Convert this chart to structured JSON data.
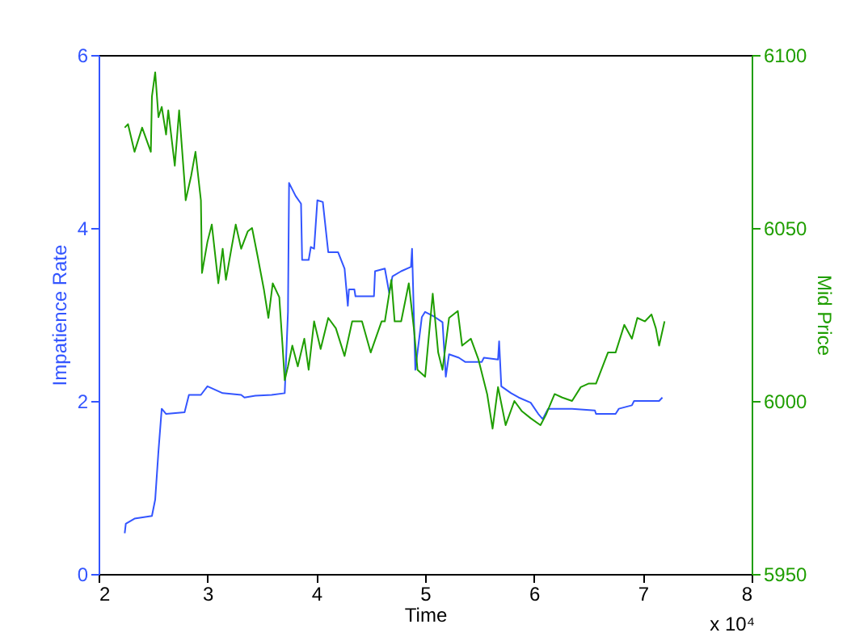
{
  "chart_data": {
    "type": "line",
    "xlabel": "Time",
    "ylabel": "Impatience Rate",
    "y2label": "Mid Price",
    "xlim": [
      2,
      8
    ],
    "xticks": [
      2,
      3,
      4,
      5,
      6,
      7,
      8
    ],
    "ylim": [
      0,
      6
    ],
    "yticks": [
      0,
      2,
      4,
      6
    ],
    "y2lim": [
      5950,
      6100
    ],
    "y2ticks": [
      5950,
      6000,
      6050,
      6100
    ],
    "grid": false,
    "marker": "none",
    "line_style": "solid",
    "annotations": [
      "x 10⁴"
    ],
    "series": [
      {
        "color": "#3355ff",
        "axis": "y",
        "x": [
          2.24,
          2.25,
          2.33,
          2.49,
          2.52,
          2.55,
          2.58,
          2.62,
          2.79,
          2.83,
          2.94,
          3.0,
          3.14,
          3.31,
          3.34,
          3.44,
          3.59,
          3.71,
          3.74,
          3.75,
          3.81,
          3.86,
          3.87,
          3.93,
          3.95,
          3.98,
          4.01,
          4.06,
          4.11,
          4.2,
          4.26,
          4.29,
          4.3,
          4.35,
          4.36,
          4.53,
          4.54,
          4.63,
          4.67,
          4.7,
          4.78,
          4.87,
          4.88,
          4.91,
          4.97,
          5.0,
          5.09,
          5.16,
          5.19,
          5.22,
          5.31,
          5.37,
          5.52,
          5.54,
          5.67,
          5.68,
          5.7,
          5.79,
          5.86,
          5.97,
          6.04,
          6.08,
          6.13,
          6.35,
          6.56,
          6.57,
          6.75,
          6.78,
          6.9,
          6.92,
          7.15,
          7.18
        ],
        "values": [
          0.47,
          0.58,
          0.64,
          0.67,
          0.86,
          1.42,
          1.91,
          1.85,
          1.87,
          2.07,
          2.07,
          2.17,
          2.09,
          2.07,
          2.04,
          2.06,
          2.07,
          2.09,
          3.03,
          4.52,
          4.37,
          4.28,
          3.63,
          3.63,
          3.78,
          3.76,
          4.32,
          4.3,
          3.72,
          3.72,
          3.53,
          3.1,
          3.29,
          3.29,
          3.21,
          3.21,
          3.5,
          3.53,
          3.25,
          3.44,
          3.5,
          3.55,
          3.76,
          2.36,
          2.97,
          3.03,
          2.97,
          2.91,
          2.28,
          2.54,
          2.5,
          2.45,
          2.45,
          2.5,
          2.48,
          2.69,
          2.17,
          2.09,
          2.04,
          1.98,
          1.85,
          1.79,
          1.91,
          1.91,
          1.89,
          1.85,
          1.85,
          1.91,
          1.95,
          2.0,
          2.0,
          2.04
        ]
      },
      {
        "color": "#1f9e00",
        "axis": "y2",
        "x": [
          2.24,
          2.27,
          2.33,
          2.4,
          2.48,
          2.49,
          2.52,
          2.55,
          2.58,
          2.62,
          2.64,
          2.7,
          2.74,
          2.79,
          2.8,
          2.85,
          2.89,
          2.94,
          2.95,
          3.0,
          3.04,
          3.1,
          3.14,
          3.17,
          3.22,
          3.26,
          3.31,
          3.37,
          3.41,
          3.46,
          3.52,
          3.56,
          3.6,
          3.66,
          3.69,
          3.71,
          3.74,
          3.78,
          3.83,
          3.89,
          3.93,
          3.98,
          4.04,
          4.11,
          4.18,
          4.26,
          4.33,
          4.42,
          4.5,
          4.6,
          4.63,
          4.69,
          4.72,
          4.78,
          4.85,
          4.9,
          4.93,
          5.0,
          5.07,
          5.12,
          5.16,
          5.22,
          5.3,
          5.34,
          5.42,
          5.49,
          5.57,
          5.62,
          5.67,
          5.74,
          5.82,
          5.89,
          5.97,
          6.06,
          6.11,
          6.19,
          6.26,
          6.35,
          6.43,
          6.5,
          6.57,
          6.68,
          6.75,
          6.83,
          6.9,
          6.95,
          7.02,
          7.08,
          7.12,
          7.15,
          7.2
        ],
        "values": [
          6079,
          6080,
          6072,
          6079,
          6072,
          6088,
          6095,
          6082,
          6085,
          6077,
          6084,
          6068,
          6084,
          6063,
          6058,
          6065,
          6072,
          6058,
          6037,
          6046,
          6051,
          6034,
          6044,
          6035,
          6044,
          6051,
          6044,
          6049,
          6050,
          6042,
          6032,
          6024,
          6034,
          6030,
          6016,
          6006,
          6010,
          6016,
          6010,
          6018,
          6009,
          6023,
          6015,
          6024,
          6021,
          6013,
          6023,
          6023,
          6014,
          6023,
          6023,
          6035,
          6023,
          6023,
          6034,
          6020,
          6009,
          6007,
          6031,
          6014,
          6009,
          6024,
          6026,
          6016,
          6018,
          6012,
          6002,
          5992,
          6004,
          5993,
          6000,
          5997,
          5995,
          5993,
          5996,
          6002,
          6001,
          6000,
          6004,
          6005,
          6005,
          6014,
          6014,
          6022,
          6018,
          6024,
          6023,
          6025,
          6021,
          6016,
          6023
        ]
      }
    ]
  }
}
